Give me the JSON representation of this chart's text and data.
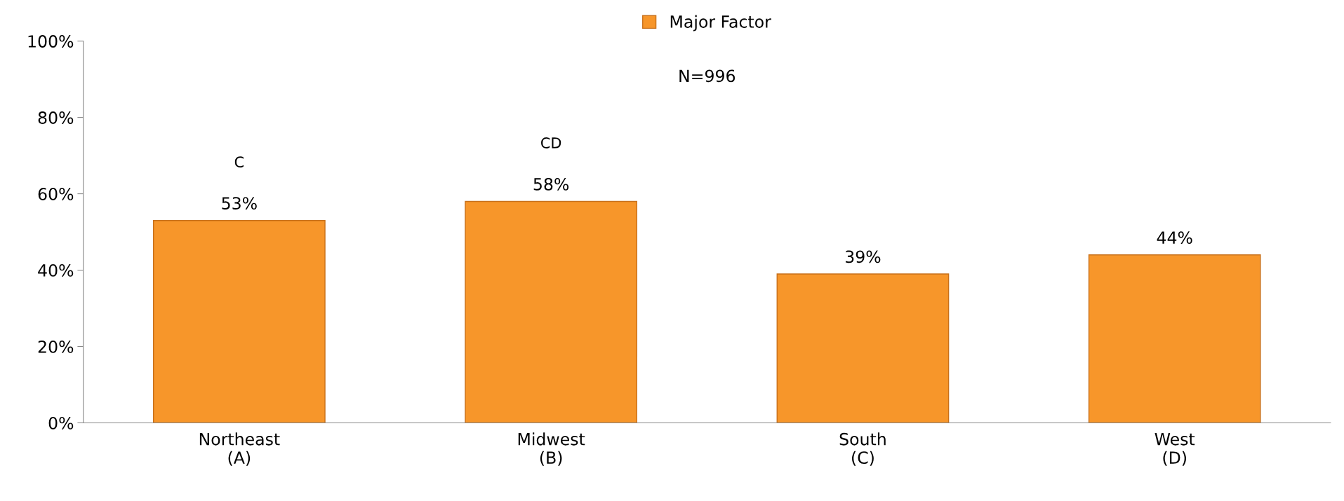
{
  "chart_data": {
    "type": "bar",
    "categories": [
      "Northeast\n(A)",
      "Midwest\n(B)",
      "South\n(C)",
      "West\n(D)"
    ],
    "series": [
      {
        "name": "Major Factor",
        "color": "#f7962a",
        "values": [
          53,
          58,
          39,
          44
        ],
        "value_labels": [
          "53%",
          "58%",
          "39%",
          "44%"
        ]
      }
    ],
    "ylim": [
      0,
      100
    ],
    "yticks": [
      {
        "value": 0,
        "label": "0%"
      },
      {
        "value": 20,
        "label": "20%"
      },
      {
        "value": 40,
        "label": "40%"
      },
      {
        "value": 60,
        "label": "60%"
      },
      {
        "value": 80,
        "label": "80%"
      },
      {
        "value": 100,
        "label": "100%"
      }
    ],
    "annotations": [
      "C",
      "CD",
      "N=996"
    ],
    "legend": "top",
    "grid": false
  }
}
